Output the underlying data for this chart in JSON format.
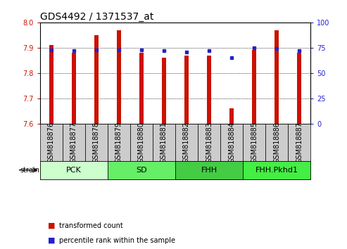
{
  "title": "GDS4492 / 1371537_at",
  "samples": [
    "GSM818876",
    "GSM818877",
    "GSM818878",
    "GSM818879",
    "GSM818880",
    "GSM818881",
    "GSM818882",
    "GSM818883",
    "GSM818884",
    "GSM818885",
    "GSM818886",
    "GSM818887"
  ],
  "red_values": [
    7.91,
    7.88,
    7.95,
    7.97,
    7.88,
    7.86,
    7.87,
    7.87,
    7.66,
    7.89,
    7.97,
    7.88
  ],
  "blue_values": [
    73,
    72,
    73,
    73,
    73,
    72,
    71,
    72,
    65,
    75,
    74,
    72
  ],
  "ylim_left": [
    7.6,
    8.0
  ],
  "ylim_right": [
    0,
    100
  ],
  "yticks_left": [
    7.6,
    7.7,
    7.8,
    7.9,
    8.0
  ],
  "yticks_right": [
    0,
    25,
    50,
    75,
    100
  ],
  "groups": [
    {
      "label": "PCK",
      "start": 0,
      "end": 2,
      "color": "#ccffcc"
    },
    {
      "label": "SD",
      "start": 3,
      "end": 5,
      "color": "#66ee66"
    },
    {
      "label": "FHH",
      "start": 6,
      "end": 8,
      "color": "#44cc44"
    },
    {
      "label": "FHH.Pkhd1",
      "start": 9,
      "end": 11,
      "color": "#44ee44"
    }
  ],
  "bar_color_red": "#cc1100",
  "bar_color_blue": "#2222cc",
  "bar_width": 0.18,
  "baseline": 7.6,
  "title_fontsize": 10,
  "tick_fontsize": 7,
  "label_fontsize": 7,
  "legend_red": "transformed count",
  "legend_blue": "percentile rank within the sample",
  "strain_label": "strain",
  "background_color": "#ffffff",
  "tick_color_left": "#cc1100",
  "tick_color_right": "#2222cc"
}
